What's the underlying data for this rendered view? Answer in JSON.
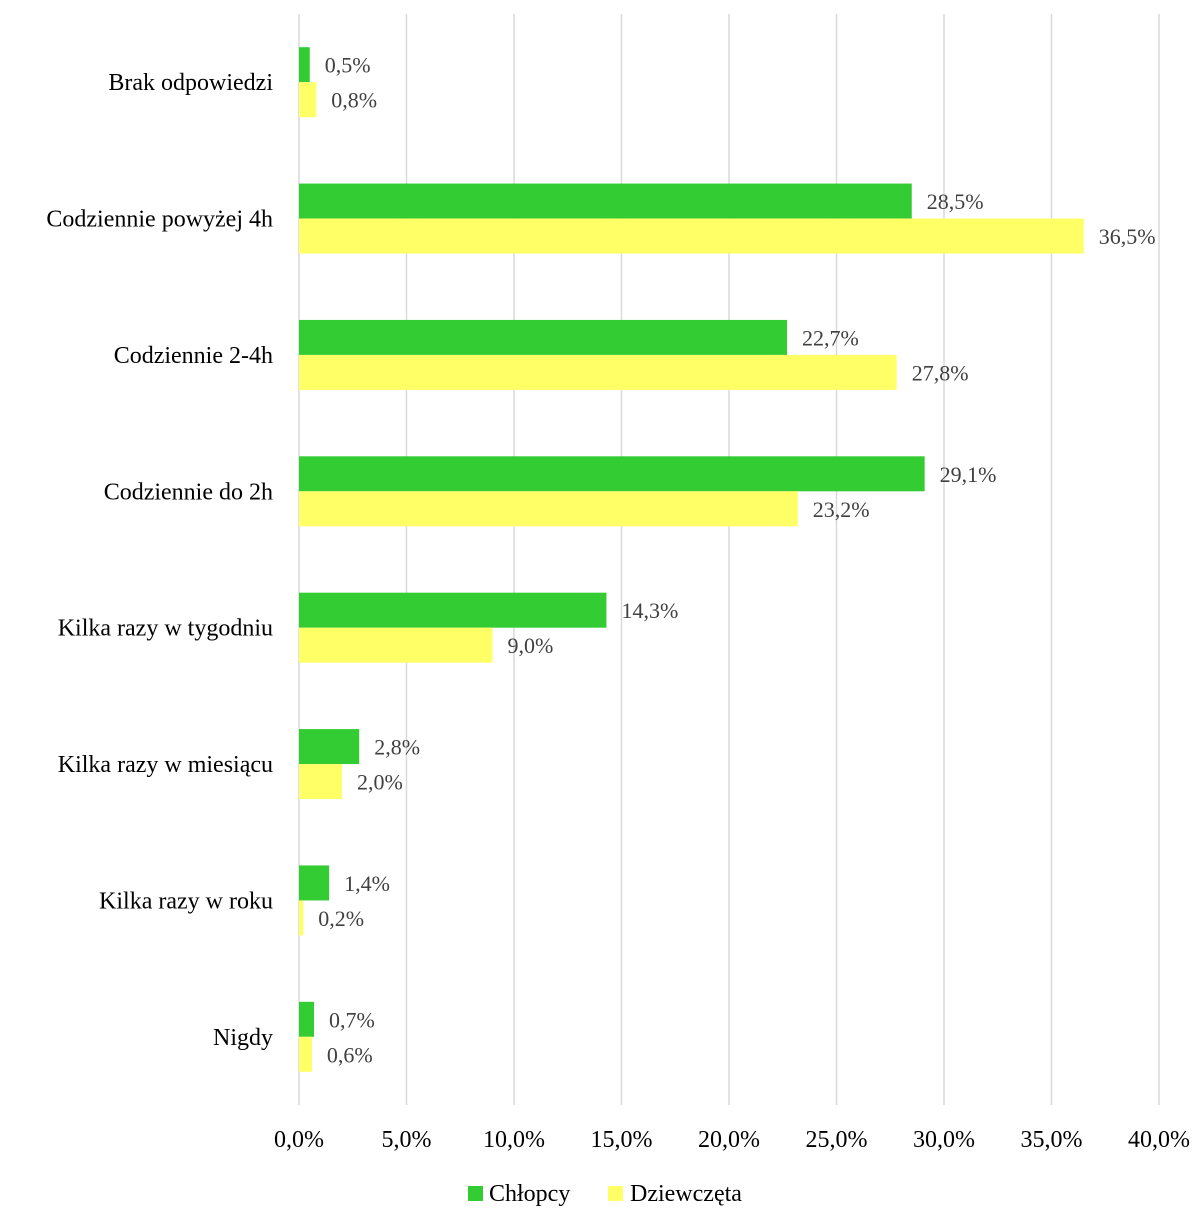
{
  "chart_data": {
    "type": "bar",
    "orientation": "horizontal",
    "categories": [
      "Brak odpowiedzi",
      "Codziennie powyżej 4h",
      "Codziennie 2-4h",
      "Codziennie do 2h",
      "Kilka razy w tygodniu",
      "Kilka razy w miesiącu",
      "Kilka razy w roku",
      "Nigdy"
    ],
    "series": [
      {
        "name": "Chłopcy",
        "color": "#33cc33",
        "values": [
          0.5,
          28.5,
          22.7,
          29.1,
          14.3,
          2.8,
          1.4,
          0.7
        ],
        "labels": [
          "0,5%",
          "28,5%",
          "22,7%",
          "29,1%",
          "14,3%",
          "2,8%",
          "1,4%",
          "0,7%"
        ]
      },
      {
        "name": "Dziewczęta",
        "color": "#ffff66",
        "values": [
          0.8,
          36.5,
          27.8,
          23.2,
          9.0,
          2.0,
          0.2,
          0.6
        ],
        "labels": [
          "0,8%",
          "36,5%",
          "27,8%",
          "23,2%",
          "9,0%",
          "2,0%",
          "0,2%",
          "0,6%"
        ]
      }
    ],
    "xlim": [
      0,
      40
    ],
    "xticks": [
      0,
      5,
      10,
      15,
      20,
      25,
      30,
      35,
      40
    ],
    "xtick_labels": [
      "0,0%",
      "5,0%",
      "10,0%",
      "15,0%",
      "20,0%",
      "25,0%",
      "30,0%",
      "35,0%",
      "40,0%"
    ],
    "grid": "vertical",
    "legend_position": "bottom",
    "title": "",
    "xlabel": "",
    "ylabel": ""
  }
}
